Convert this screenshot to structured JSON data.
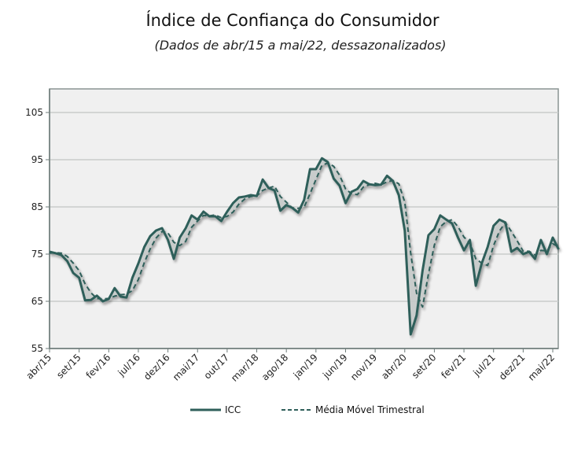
{
  "chart_data": {
    "type": "line",
    "title": "Índice de Confiança do Consumidor",
    "subtitle": "(Dados de abr/15 a mai/22, dessazonalizados)",
    "xlabel": "",
    "ylabel": "",
    "ylim": [
      55,
      110
    ],
    "yticks": [
      55,
      65,
      75,
      85,
      95,
      105
    ],
    "ytick_labels": [
      "55",
      "65",
      "75",
      "85",
      "95",
      "105"
    ],
    "xtick_labels": [
      "abr/15",
      "set/15",
      "fev/16",
      "jul/16",
      "dez/16",
      "mai/17",
      "out/17",
      "mar/18",
      "ago/18",
      "jan/19",
      "jun/19",
      "nov/19",
      "abr/20",
      "set/20",
      "fev/21",
      "jul/21",
      "dez/21",
      "mai/22"
    ],
    "xtick_month_index": [
      0,
      5,
      10,
      15,
      20,
      25,
      30,
      35,
      40,
      45,
      50,
      55,
      60,
      65,
      70,
      75,
      80,
      85
    ],
    "grid": true,
    "legend_position": "bottom",
    "series": [
      {
        "name": "ICC",
        "style": "solid",
        "color": "#2f5f5a",
        "values": [
          75.5,
          75.2,
          74.8,
          73.5,
          71,
          70,
          65.2,
          65.3,
          66.2,
          65,
          65.5,
          67.8,
          66,
          65.8,
          70,
          73,
          76.5,
          78.8,
          80,
          80.5,
          78,
          74,
          78.5,
          80.5,
          83.2,
          82.3,
          84,
          83,
          83,
          82,
          84,
          85.8,
          87,
          87.2,
          87.5,
          87.3,
          90.8,
          89,
          88.5,
          84.2,
          85.4,
          84.8,
          83.8,
          86.5,
          93,
          93,
          95.3,
          94.5,
          91,
          89.5,
          85.8,
          88.2,
          88.8,
          90.5,
          89.8,
          89.6,
          89.7,
          91.6,
          90.5,
          87.5,
          80,
          58,
          62,
          71.5,
          79,
          80.3,
          83.2,
          82.3,
          81.5,
          78.5,
          75.8,
          78,
          68.3,
          73,
          76.5,
          81,
          82.3,
          81.7,
          75.5,
          76.3,
          75,
          75.5,
          74,
          78,
          75,
          78.5,
          76
        ]
      },
      {
        "name": "Média Móvel Trimestral",
        "style": "dashed",
        "color": "#2f5f5a",
        "values": [
          75.2,
          75.3,
          75.2,
          74.5,
          73.1,
          71.5,
          68.7,
          66.8,
          65.6,
          65.5,
          65.6,
          66.1,
          66.4,
          66.5,
          67.3,
          69.6,
          73.2,
          76.1,
          78.4,
          79.8,
          79.5,
          77.5,
          76.8,
          77.7,
          80.7,
          82,
          83.2,
          83.1,
          83.3,
          82.7,
          83,
          83.9,
          85.6,
          86.7,
          87.2,
          87.3,
          88.5,
          89,
          89.4,
          87.2,
          86,
          84.8,
          84.7,
          85,
          87.8,
          90.8,
          93.8,
          94.3,
          93.6,
          91.7,
          88.8,
          87.8,
          87.6,
          89.2,
          89.7,
          90,
          89.7,
          90.3,
          90.6,
          89.9,
          86,
          75.2,
          66.7,
          63.8,
          70.8,
          76.9,
          80.8,
          81.9,
          82.3,
          80.8,
          78.6,
          77.4,
          74,
          73.1,
          72.6,
          76.8,
          79.9,
          81.7,
          79.8,
          77.8,
          75.6,
          75.6,
          74.8,
          75.8,
          75.7,
          77.2,
          76.5
        ]
      }
    ]
  }
}
